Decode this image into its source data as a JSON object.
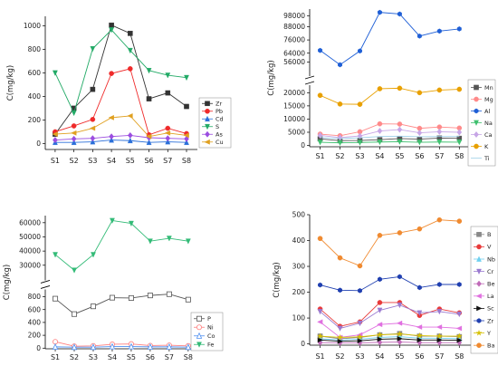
{
  "chart_data": [
    {
      "type": "line",
      "panel": "top-left",
      "ylabel": "C(mg/kg)",
      "categories": [
        "S1",
        "S2",
        "S3",
        "S4",
        "S5",
        "S6",
        "S7",
        "S8"
      ],
      "ylim": [
        -50,
        1080
      ],
      "yticks": [
        0,
        200,
        400,
        600,
        800,
        1000
      ],
      "legend_position": "right",
      "series": [
        {
          "name": "Zr",
          "color": "#333333",
          "marker": "square",
          "values": [
            80,
            300,
            460,
            1005,
            935,
            380,
            430,
            315
          ]
        },
        {
          "name": "Pb",
          "color": "#ef2a2a",
          "marker": "circle",
          "values": [
            100,
            150,
            205,
            595,
            635,
            75,
            130,
            85
          ]
        },
        {
          "name": "Cd",
          "color": "#2a6fd9",
          "marker": "triangle",
          "values": [
            10,
            10,
            15,
            30,
            25,
            10,
            15,
            10
          ]
        },
        {
          "name": "S",
          "color": "#22aa66",
          "marker": "triangle-down",
          "values": [
            600,
            260,
            805,
            965,
            790,
            620,
            580,
            560
          ]
        },
        {
          "name": "As",
          "color": "#9b4de0",
          "marker": "diamond",
          "values": [
            30,
            40,
            45,
            60,
            70,
            50,
            45,
            40
          ]
        },
        {
          "name": "Cu",
          "color": "#e0a020",
          "marker": "triangle-left",
          "values": [
            80,
            90,
            130,
            220,
            235,
            60,
            90,
            70
          ]
        }
      ]
    },
    {
      "type": "line",
      "panel": "top-right",
      "ylabel": "C(mg/kg)",
      "categories": [
        "S1",
        "S2",
        "S3",
        "S4",
        "S5",
        "S6",
        "S7",
        "S8"
      ],
      "axis_break": [
        22500,
        44000
      ],
      "lower_range": [
        -500,
        22500
      ],
      "upper_range": [
        44000,
        104000
      ],
      "yticks_lower": [
        0,
        5000,
        10000,
        15000,
        20000
      ],
      "yticks_upper": [
        56000,
        64000,
        76000,
        88000,
        98000
      ],
      "legend_position": "right",
      "series": [
        {
          "name": "Mn",
          "color": "#555555",
          "marker": "square",
          "values": [
            2500,
            1800,
            1900,
            2200,
            2600,
            2400,
            2800,
            2700
          ]
        },
        {
          "name": "Mg",
          "color": "#ff8a8a",
          "marker": "circle",
          "values": [
            4300,
            3700,
            5200,
            8200,
            8100,
            6500,
            7000,
            6600
          ]
        },
        {
          "name": "Al",
          "color": "#1f5fd6",
          "marker": "hexagon",
          "values": [
            66500,
            53500,
            66000,
            101000,
            99500,
            79500,
            84000,
            86000
          ]
        },
        {
          "name": "Na",
          "color": "#3fc06f",
          "marker": "triangle-down",
          "values": [
            1200,
            1000,
            1100,
            1300,
            1400,
            1200,
            1300,
            1250
          ]
        },
        {
          "name": "Ca",
          "color": "#c7a6e6",
          "marker": "diamond",
          "values": [
            3800,
            3000,
            3600,
            5500,
            6000,
            4800,
            5200,
            5000
          ]
        },
        {
          "name": "K",
          "color": "#e8a000",
          "marker": "circle",
          "values": [
            19000,
            15700,
            15600,
            21500,
            21700,
            20000,
            21000,
            21300
          ]
        },
        {
          "name": "Ti",
          "color": "#9fd0e8",
          "marker": "none",
          "values": [
            3000,
            2600,
            2900,
            3400,
            3500,
            3300,
            3400,
            3400
          ]
        }
      ]
    },
    {
      "type": "line",
      "panel": "bottom-left",
      "ylabel": "C(mg/kg)",
      "categories": [
        "S1",
        "S2",
        "S3",
        "S4",
        "S5",
        "S6",
        "S7",
        "S8"
      ],
      "axis_break": [
        900,
        20000
      ],
      "lower_range": [
        -10,
        900
      ],
      "upper_range": [
        20000,
        65000
      ],
      "yticks_lower": [
        0,
        200,
        400,
        600,
        800
      ],
      "yticks_upper": [
        30000,
        40000,
        50000,
        60000
      ],
      "legend_position": "right",
      "series": [
        {
          "name": "P",
          "color": "#555555",
          "marker": "open-square",
          "values": [
            770,
            530,
            650,
            785,
            780,
            820,
            840,
            755
          ]
        },
        {
          "name": "Ni",
          "color": "#ff7f7f",
          "marker": "open-circle",
          "values": [
            100,
            30,
            35,
            60,
            65,
            40,
            45,
            35
          ]
        },
        {
          "name": "Co",
          "color": "#4f8ff0",
          "marker": "open-triangle",
          "values": [
            20,
            15,
            15,
            25,
            25,
            20,
            20,
            15
          ]
        },
        {
          "name": "Fe",
          "color": "#33bb77",
          "marker": "triangle-down",
          "values": [
            37500,
            26500,
            37500,
            61500,
            59500,
            47000,
            49000,
            47000
          ]
        }
      ]
    },
    {
      "type": "line",
      "panel": "bottom-right",
      "ylabel": "C(mg/kg)",
      "categories": [
        "S1",
        "S2",
        "S3",
        "S4",
        "S5",
        "S6",
        "S7",
        "S8"
      ],
      "ylim": [
        -5,
        500
      ],
      "yticks": [
        0,
        100,
        200,
        300,
        400,
        500
      ],
      "legend_position": "right",
      "series": [
        {
          "name": "B",
          "color": "#888888",
          "marker": "square",
          "values": [
            30,
            20,
            25,
            35,
            40,
            30,
            30,
            28
          ]
        },
        {
          "name": "V",
          "color": "#e83a3a",
          "marker": "circle",
          "values": [
            135,
            68,
            85,
            160,
            160,
            110,
            135,
            120
          ]
        },
        {
          "name": "Nb",
          "color": "#6fd0f0",
          "marker": "triangle",
          "values": [
            20,
            15,
            18,
            25,
            28,
            22,
            22,
            20
          ]
        },
        {
          "name": "Cr",
          "color": "#9a7ad0",
          "marker": "triangle-down",
          "values": [
            125,
            60,
            80,
            130,
            150,
            120,
            125,
            115
          ]
        },
        {
          "name": "Be",
          "color": "#c06ab8",
          "marker": "diamond",
          "values": [
            5,
            4,
            4,
            6,
            7,
            5,
            5,
            5
          ]
        },
        {
          "name": "La",
          "color": "#e070e0",
          "marker": "triangle-left",
          "values": [
            85,
            25,
            35,
            75,
            80,
            65,
            65,
            60
          ]
        },
        {
          "name": "Sc",
          "color": "#111111",
          "marker": "triangle-right",
          "values": [
            15,
            10,
            12,
            18,
            20,
            15,
            15,
            14
          ]
        },
        {
          "name": "Zr",
          "color": "#1f3fb0",
          "marker": "hexagon",
          "values": [
            228,
            208,
            206,
            250,
            260,
            218,
            230,
            230
          ]
        },
        {
          "name": "Y",
          "color": "#d6c000",
          "marker": "star",
          "values": [
            30,
            25,
            27,
            35,
            38,
            32,
            30,
            30
          ]
        },
        {
          "name": "Ba",
          "color": "#f08a30",
          "marker": "circle",
          "values": [
            408,
            333,
            302,
            420,
            430,
            445,
            480,
            475
          ]
        }
      ]
    }
  ]
}
